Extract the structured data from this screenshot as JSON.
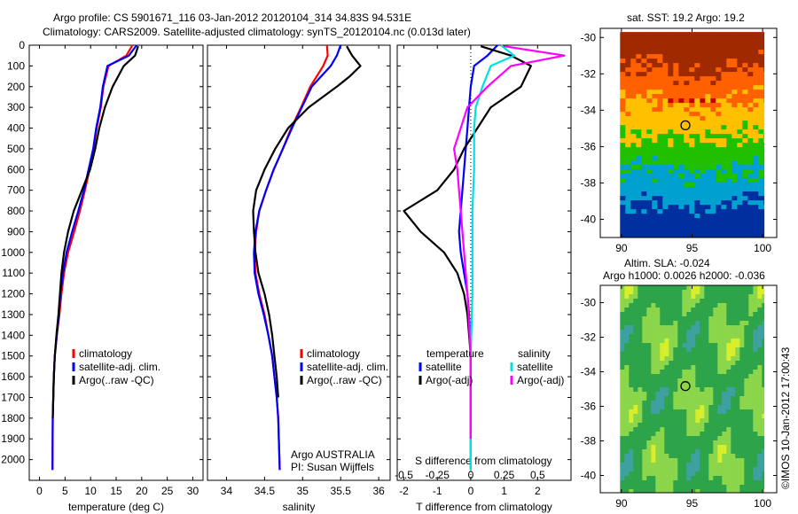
{
  "header": {
    "line1": "Argo profile: CS 5901671_116 03-Jan-2012 20120104_314 34.83S 94.531E",
    "line2": "Climatology: CARS2009. Satellite-adjusted climatology: synTS_20120104.nc (0.013d later)"
  },
  "credit": "©IMOS 10-Jan-2012 17:00:43",
  "chart_data": [
    {
      "type": "line",
      "id": "temperature",
      "xlabel": "temperature (deg C)",
      "ylabel": "",
      "xlim": [
        -2,
        32
      ],
      "ylim": [
        2100,
        0
      ],
      "xticks": [
        0,
        5,
        10,
        15,
        20,
        25,
        30
      ],
      "yticks": [
        0,
        100,
        200,
        300,
        400,
        500,
        600,
        700,
        800,
        900,
        1000,
        1100,
        1200,
        1300,
        1400,
        1500,
        1600,
        1700,
        1800,
        1900,
        2000
      ],
      "legend": [
        "climatology",
        "satellite-adj. clim.",
        "Argo(..raw -QC)"
      ],
      "legend_placement": "lower-center",
      "series": [
        {
          "name": "climatology",
          "color": "#ff0000",
          "x": [
            18.2,
            17.0,
            13.5,
            12.5,
            12.0,
            11.2,
            10.6,
            9.8,
            8.9,
            7.9,
            6.8,
            5.6,
            4.8,
            4.3,
            3.9,
            3.4,
            3.0,
            2.8,
            2.7,
            2.6,
            2.55
          ],
          "y": [
            0,
            50,
            100,
            200,
            300,
            400,
            500,
            600,
            700,
            800,
            900,
            1000,
            1100,
            1200,
            1300,
            1400,
            1500,
            1600,
            1700,
            1800,
            2050
          ]
        },
        {
          "name": "satellite-adj. clim.",
          "color": "#0000ff",
          "x": [
            19.0,
            17.5,
            13.3,
            12.4,
            11.9,
            11.1,
            10.5,
            9.6,
            8.7,
            7.6,
            6.4,
            5.3,
            4.6,
            4.1,
            3.8,
            3.4,
            3.0,
            2.8,
            2.7,
            2.6,
            2.55
          ],
          "y": [
            0,
            50,
            100,
            200,
            300,
            400,
            500,
            600,
            700,
            800,
            900,
            1000,
            1100,
            1200,
            1300,
            1400,
            1500,
            1600,
            1700,
            1800,
            2050
          ]
        },
        {
          "name": "Argo(..raw -QC)",
          "color": "#000000",
          "x": [
            19.3,
            18.7,
            16.5,
            14.3,
            12.8,
            11.7,
            10.9,
            9.9,
            8.3,
            6.7,
            5.6,
            4.8,
            4.3,
            4.0,
            3.7,
            3.3,
            3.0,
            2.8,
            2.7,
            2.6
          ],
          "y": [
            5,
            50,
            100,
            200,
            300,
            400,
            500,
            600,
            700,
            800,
            900,
            1000,
            1100,
            1200,
            1300,
            1400,
            1500,
            1600,
            1700,
            1800
          ]
        }
      ]
    },
    {
      "type": "line",
      "id": "salinity",
      "xlabel": "salinity",
      "ylabel": "",
      "xlim": [
        33.75,
        36.15
      ],
      "ylim": [
        2100,
        0
      ],
      "xticks": [
        34,
        34.5,
        35,
        35.5,
        36
      ],
      "legend": [
        "climatology",
        "satellite-adj. clim.",
        "Argo(..raw -QC)"
      ],
      "legend_placement": "lower-center",
      "annotation": [
        "Argo AUSTRALIA",
        "PI: Susan Wijffels"
      ],
      "series": [
        {
          "name": "climatology",
          "color": "#ff0000",
          "x": [
            35.32,
            35.33,
            35.27,
            35.1,
            34.98,
            34.85,
            34.74,
            34.62,
            34.52,
            34.43,
            34.39,
            34.37,
            34.38,
            34.43,
            34.5,
            34.55,
            34.6,
            34.63,
            34.66,
            34.68,
            34.7
          ],
          "y": [
            0,
            50,
            100,
            200,
            300,
            400,
            500,
            600,
            700,
            800,
            900,
            1000,
            1100,
            1200,
            1300,
            1400,
            1500,
            1600,
            1700,
            1800,
            2050
          ]
        },
        {
          "name": "satellite-adj. clim.",
          "color": "#0000ff",
          "x": [
            35.5,
            35.45,
            35.37,
            35.12,
            34.99,
            34.86,
            34.74,
            34.62,
            34.52,
            34.43,
            34.38,
            34.36,
            34.37,
            34.42,
            34.49,
            34.55,
            34.6,
            34.63,
            34.66,
            34.68,
            34.7
          ],
          "y": [
            0,
            50,
            100,
            200,
            300,
            400,
            500,
            600,
            700,
            800,
            900,
            1000,
            1100,
            1200,
            1300,
            1400,
            1500,
            1600,
            1700,
            1800,
            2050
          ]
        },
        {
          "name": "Argo(..raw -QC)",
          "color": "#000000",
          "x": [
            35.58,
            35.65,
            35.76,
            35.62,
            35.45,
            35.08,
            34.81,
            34.64,
            34.5,
            34.39,
            34.35,
            34.36,
            34.38,
            34.42,
            34.5,
            34.56,
            34.6,
            34.63,
            34.66,
            34.68
          ],
          "y": [
            5,
            50,
            100,
            150,
            200,
            300,
            400,
            500,
            600,
            700,
            800,
            900,
            1000,
            1100,
            1200,
            1300,
            1400,
            1500,
            1600,
            1700
          ]
        }
      ]
    },
    {
      "type": "line",
      "id": "difference",
      "xlabel": "T difference from climatology",
      "xlabel_top": "S difference from climatology",
      "xlim": [
        -2.2,
        3.0
      ],
      "ylim": [
        2100,
        0
      ],
      "xticks": [
        -2,
        -1,
        0,
        1,
        2
      ],
      "xticks_s": [
        -0.5,
        -0.25,
        0,
        0.25,
        0.5
      ],
      "legend_titles": [
        "temperature",
        "salinity"
      ],
      "legend": [
        "satellite",
        "Argo(-adj)",
        "satellite",
        "Argo(-adj)"
      ],
      "legend_placement": "lower-center",
      "series": [
        {
          "name": "satellite",
          "group": "temperature",
          "color": "#0000ff",
          "x": [
            0.8,
            0.5,
            0.1,
            0.0,
            -0.05,
            -0.1,
            -0.15,
            -0.2,
            -0.25,
            -0.3,
            -0.35,
            -0.3,
            -0.2,
            -0.1,
            -0.05,
            0.0,
            0.0
          ],
          "y": [
            0,
            50,
            100,
            200,
            300,
            400,
            500,
            600,
            700,
            800,
            900,
            1000,
            1100,
            1200,
            1300,
            1500,
            2050
          ]
        },
        {
          "name": "Argo(-adj)",
          "group": "temperature",
          "color": "#000000",
          "x": [
            0.3,
            1.2,
            1.8,
            1.5,
            0.6,
            0.2,
            -0.2,
            -0.5,
            -1.0,
            -2.0,
            -1.5,
            -0.8,
            -0.4,
            -0.2,
            -0.1,
            0.0,
            0.0
          ],
          "y": [
            5,
            50,
            100,
            200,
            300,
            400,
            500,
            600,
            700,
            800,
            900,
            1000,
            1100,
            1200,
            1300,
            1500,
            1900
          ]
        },
        {
          "name": "satellite",
          "group": "salinity",
          "color": "#00e0e0",
          "x": [
            0.9,
            1.3,
            0.6,
            0.35,
            0.15,
            0.1,
            0.1,
            0.05,
            0.05,
            0.05,
            0.0,
            0.0
          ],
          "y": [
            0,
            50,
            100,
            200,
            300,
            400,
            600,
            800,
            1000,
            1200,
            1500,
            2050
          ]
        },
        {
          "name": "Argo(-adj)",
          "group": "salinity",
          "color": "#ff00ff",
          "x": [
            1.0,
            2.8,
            1.2,
            0.5,
            -0.1,
            -0.5,
            -0.4,
            -0.3,
            -0.2,
            -0.1,
            0.0,
            0.0
          ],
          "y": [
            5,
            50,
            100,
            200,
            300,
            500,
            600,
            800,
            1000,
            1200,
            1500,
            1900
          ]
        }
      ]
    },
    {
      "type": "heatmap",
      "id": "sst-map",
      "title": "sat. SST: 19.2 Argo: 19.2",
      "xlim": [
        88.5,
        101
      ],
      "ylim": [
        -41,
        -29.5
      ],
      "xticks": [
        90,
        95,
        100
      ],
      "yticks": [
        -30,
        -32,
        -34,
        -36,
        -38,
        -40
      ],
      "marker": {
        "lon": 94.531,
        "lat": -34.83
      },
      "colors": [
        "#a02a00",
        "#ff6000",
        "#ffc000",
        "#20c000",
        "#00a0d0",
        "#0030a0"
      ]
    },
    {
      "type": "heatmap",
      "id": "sla-map",
      "title": "Altim. SLA: -0.024",
      "subtitle": "Argo h1000: 0.0026 h2000: -0.036",
      "xlim": [
        88.5,
        101
      ],
      "ylim": [
        -41,
        -29
      ],
      "xticks": [
        90,
        95,
        100
      ],
      "yticks": [
        -30,
        -32,
        -34,
        -36,
        -38,
        -40
      ],
      "marker": {
        "lon": 94.531,
        "lat": -34.83
      },
      "colors": [
        "#2ea44a",
        "#8bd64a",
        "#d8ee2a",
        "#3fa0a0"
      ]
    }
  ]
}
